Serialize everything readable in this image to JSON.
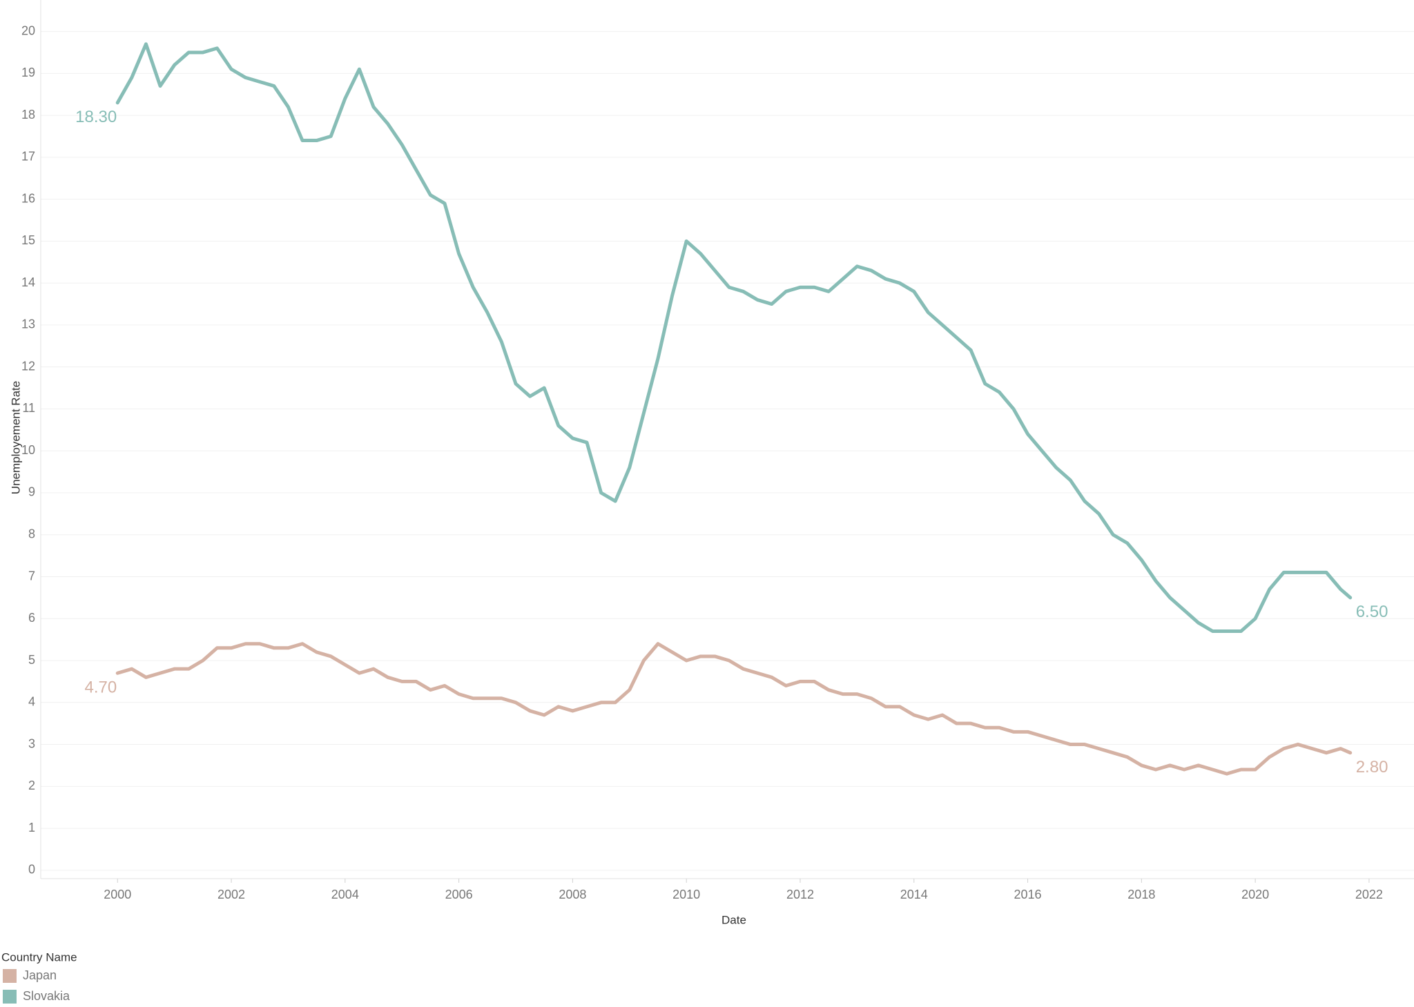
{
  "chart_data": {
    "type": "line",
    "x_label": "Date",
    "y_label": "Unemployement Rate",
    "legend_title": "Country Name",
    "legend": "bottom-left",
    "grid": true,
    "xlim": [
      1998.65,
      2022.79
    ],
    "ylim": [
      -0.2,
      20.75
    ],
    "xticks": [
      2000,
      2002,
      2004,
      2006,
      2008,
      2010,
      2012,
      2014,
      2016,
      2018,
      2020,
      2022
    ],
    "yticks": [
      0,
      1,
      2,
      3,
      4,
      5,
      6,
      7,
      8,
      9,
      10,
      11,
      12,
      13,
      14,
      15,
      16,
      17,
      18,
      19,
      20
    ],
    "x": [
      2000,
      2000.25,
      2000.5,
      2000.75,
      2001,
      2001.25,
      2001.5,
      2001.75,
      2002,
      2002.25,
      2002.5,
      2002.75,
      2003,
      2003.25,
      2003.5,
      2003.75,
      2004,
      2004.25,
      2004.5,
      2004.75,
      2005,
      2005.25,
      2005.5,
      2005.75,
      2006,
      2006.25,
      2006.5,
      2006.75,
      2007,
      2007.25,
      2007.5,
      2007.75,
      2008,
      2008.25,
      2008.5,
      2008.75,
      2009,
      2009.25,
      2009.5,
      2009.75,
      2010,
      2010.25,
      2010.5,
      2010.75,
      2011,
      2011.25,
      2011.5,
      2011.75,
      2012,
      2012.25,
      2012.5,
      2012.75,
      2013,
      2013.25,
      2013.5,
      2013.75,
      2014,
      2014.25,
      2014.5,
      2014.75,
      2015,
      2015.25,
      2015.5,
      2015.75,
      2016,
      2016.25,
      2016.5,
      2016.75,
      2017,
      2017.25,
      2017.5,
      2017.75,
      2018,
      2018.25,
      2018.5,
      2018.75,
      2019,
      2019.25,
      2019.5,
      2019.75,
      2020,
      2020.25,
      2020.5,
      2020.75,
      2021,
      2021.25,
      2021.5,
      2021.67
    ],
    "series": [
      {
        "name": "Japan",
        "color": "#d5b2a4",
        "start_label": "4.70",
        "end_label": "2.80",
        "values": [
          4.7,
          4.8,
          4.6,
          4.7,
          4.8,
          4.8,
          5.0,
          5.3,
          5.3,
          5.4,
          5.4,
          5.3,
          5.3,
          5.4,
          5.2,
          5.1,
          4.9,
          4.7,
          4.8,
          4.6,
          4.5,
          4.5,
          4.3,
          4.4,
          4.2,
          4.1,
          4.1,
          4.1,
          4.0,
          3.8,
          3.7,
          3.9,
          3.8,
          3.9,
          4.0,
          4.0,
          4.3,
          5.0,
          5.4,
          5.2,
          5.0,
          5.1,
          5.1,
          5.0,
          4.8,
          4.7,
          4.6,
          4.4,
          4.5,
          4.5,
          4.3,
          4.2,
          4.2,
          4.1,
          3.9,
          3.9,
          3.7,
          3.6,
          3.7,
          3.5,
          3.5,
          3.4,
          3.4,
          3.3,
          3.3,
          3.2,
          3.1,
          3.0,
          3.0,
          2.9,
          2.8,
          2.7,
          2.5,
          2.4,
          2.5,
          2.4,
          2.5,
          2.4,
          2.3,
          2.4,
          2.4,
          2.7,
          2.9,
          3.0,
          2.9,
          2.8,
          2.9,
          2.8
        ]
      },
      {
        "name": "Slovakia",
        "color": "#87bdb6",
        "start_label": "18.30",
        "end_label": "6.50",
        "values": [
          18.3,
          18.9,
          19.7,
          18.7,
          19.2,
          19.5,
          19.5,
          19.6,
          19.1,
          18.9,
          18.8,
          18.7,
          18.2,
          17.4,
          17.4,
          17.5,
          18.4,
          19.1,
          18.2,
          17.8,
          17.3,
          16.7,
          16.1,
          15.9,
          14.7,
          13.9,
          13.3,
          12.6,
          11.6,
          11.3,
          11.5,
          10.6,
          10.3,
          10.2,
          9.0,
          8.8,
          9.6,
          10.9,
          12.2,
          13.7,
          15.0,
          14.7,
          14.3,
          13.9,
          13.8,
          13.6,
          13.5,
          13.8,
          13.9,
          13.9,
          13.8,
          14.1,
          14.4,
          14.3,
          14.1,
          14.0,
          13.8,
          13.3,
          13.0,
          12.7,
          12.4,
          11.6,
          11.4,
          11.0,
          10.4,
          10.0,
          9.6,
          9.3,
          8.8,
          8.5,
          8.0,
          7.8,
          7.4,
          6.9,
          6.5,
          6.2,
          5.9,
          5.7,
          5.7,
          5.7,
          6.0,
          6.7,
          7.1,
          7.1,
          7.1,
          7.1,
          6.7,
          6.5
        ]
      }
    ]
  }
}
